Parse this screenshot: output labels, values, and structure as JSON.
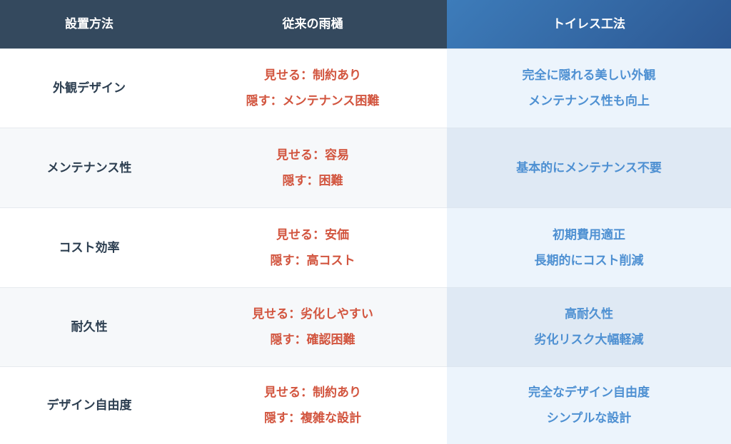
{
  "header": [
    "設置方法",
    "従来の雨樋",
    "トイレス工法"
  ],
  "colors": {
    "header_bg": "#34495e",
    "accent_header": "#2c5792",
    "old_text": "#d2553f",
    "new_text": "#4e90d2",
    "label_text": "#2c3e50"
  },
  "rows": [
    {
      "label": "外観デザイン",
      "old": [
        "見せる：制約あり",
        "隠す：メンテナンス困難"
      ],
      "new": [
        "完全に隠れる美しい外観",
        "メンテナンス性も向上"
      ]
    },
    {
      "label": "メンテナンス性",
      "old": [
        "見せる：容易",
        "隠す：困難"
      ],
      "new": [
        "基本的にメンテナンス不要"
      ]
    },
    {
      "label": "コスト効率",
      "old": [
        "見せる：安価",
        "隠す：高コスト"
      ],
      "new": [
        "初期費用適正",
        "長期的にコスト削減"
      ]
    },
    {
      "label": "耐久性",
      "old": [
        "見せる：劣化しやすい",
        "隠す：確認困難"
      ],
      "new": [
        "高耐久性",
        "劣化リスク大幅軽減"
      ]
    },
    {
      "label": "デザイン自由度",
      "old": [
        "見せる：制約あり",
        "隠す：複雑な設計"
      ],
      "new": [
        "完全なデザイン自由度",
        "シンプルな設計"
      ]
    }
  ]
}
